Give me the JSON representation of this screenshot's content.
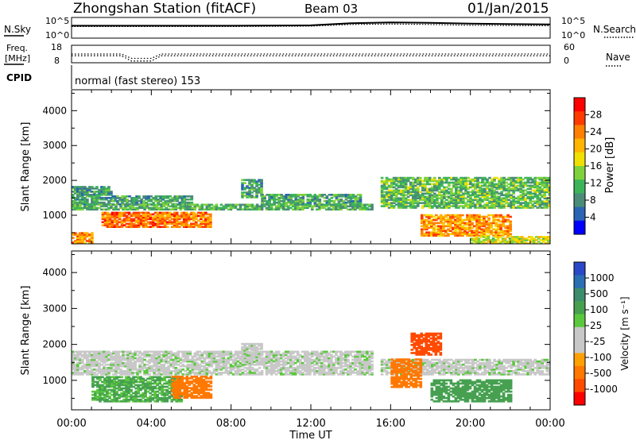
{
  "header": {
    "station": "Zhongshan Station (fitACF)",
    "beam": "Beam 03",
    "date": "01/Jan/2015"
  },
  "top_panels": {
    "nsky_label": "N.Sky",
    "nsearch_label": "N.Search",
    "noise_ticks": [
      "10^5",
      "10^0"
    ],
    "freq_label_1": "Freq.",
    "freq_label_2": "[MHz]",
    "freq_ticks": [
      "18",
      "8"
    ],
    "nave_label": "Nave",
    "nave_ticks": [
      "60",
      "0"
    ],
    "cpid_label": "CPID",
    "cpid_value": "normal (fast stereo) 153"
  },
  "x_axis": {
    "label": "Time UT",
    "ticks": [
      "00:00",
      "04:00",
      "08:00",
      "12:00",
      "16:00",
      "20:00",
      "00:00"
    ]
  },
  "y_axis": {
    "label": "Slant Range [km]",
    "ticks": [
      "4000",
      "3000",
      "2000",
      "1000"
    ]
  },
  "power_scale": {
    "label": "Power [dB]",
    "ticks": [
      "28",
      "24",
      "20",
      "16",
      "12",
      "8",
      "4"
    ],
    "colors": [
      "#ff0000",
      "#ff3a00",
      "#ff8000",
      "#ffb400",
      "#f0e000",
      "#7fd23c",
      "#3cb45a",
      "#4a8c78",
      "#2a64b4",
      "#0000ff"
    ]
  },
  "velocity_scale": {
    "label": "Velocity [m s⁻¹]",
    "ticks": [
      "1000",
      "500",
      "100",
      "25",
      "-25",
      "-100",
      "-500",
      "-1000"
    ],
    "colors": [
      "#2a48c8",
      "#2a6eb4",
      "#3c8c6e",
      "#46a050",
      "#5ac83c",
      "#c8c8c8",
      "#c8c8c8",
      "#ffa000",
      "#ff7800",
      "#ff4a00",
      "#ff0000"
    ]
  },
  "chart_data": [
    {
      "type": "heatmap",
      "title": "Zhongshan Station (fitACF)  Beam 03  01/Jan/2015",
      "quantity": "Power [dB]",
      "xlabel": "Time UT",
      "ylabel": "Slant Range [km]",
      "xlim": [
        "00:00",
        "24:00"
      ],
      "ylim": [
        180,
        4600
      ],
      "colorbar_range": [
        0,
        30
      ],
      "colorbar_ticks": [
        4,
        8,
        12,
        16,
        20,
        24,
        28
      ],
      "regions": [
        {
          "t": [
            0.0,
            2.0
          ],
          "r": [
            1300,
            1800
          ],
          "value": 8
        },
        {
          "t": [
            2.0,
            6.0
          ],
          "r": [
            1300,
            1550
          ],
          "value": 8
        },
        {
          "t": [
            8.5,
            9.5
          ],
          "r": [
            1500,
            2000
          ],
          "value": 9
        },
        {
          "t": [
            9.5,
            14.5
          ],
          "r": [
            1300,
            1600
          ],
          "value": 9
        },
        {
          "t": [
            0.0,
            15.0
          ],
          "r": [
            1150,
            1300
          ],
          "value": 10
        },
        {
          "t": [
            1.5,
            7.0
          ],
          "r": [
            650,
            1100
          ],
          "value": 24
        },
        {
          "t": [
            0.0,
            1.0
          ],
          "r": [
            200,
            500
          ],
          "value": 22
        },
        {
          "t": [
            15.5,
            24.0
          ],
          "r": [
            1200,
            2100
          ],
          "value": 11
        },
        {
          "t": [
            17.5,
            22.0
          ],
          "r": [
            400,
            1000
          ],
          "value": 22
        },
        {
          "t": [
            20.0,
            24.0
          ],
          "r": [
            180,
            400
          ],
          "value": 16
        }
      ]
    },
    {
      "type": "heatmap",
      "title": "Zhongshan Station (fitACF)  Beam 03  01/Jan/2015",
      "quantity": "Velocity [m s⁻¹]",
      "xlabel": "Time UT",
      "ylabel": "Slant Range [km]",
      "xlim": [
        "00:00",
        "24:00"
      ],
      "ylim": [
        180,
        4600
      ],
      "colorbar_range": [
        -1000,
        1000
      ],
      "colorbar_ticks": [
        1000,
        500,
        100,
        25,
        -25,
        -100,
        -500,
        -1000
      ],
      "regions": [
        {
          "t": [
            0.0,
            15.0
          ],
          "r": [
            1150,
            1800
          ],
          "value": 0
        },
        {
          "t": [
            8.5,
            9.5
          ],
          "r": [
            1500,
            2000
          ],
          "value": 0
        },
        {
          "t": [
            1.0,
            5.5
          ],
          "r": [
            400,
            1100
          ],
          "value": 80
        },
        {
          "t": [
            5.0,
            7.0
          ],
          "r": [
            500,
            1100
          ],
          "value": -300
        },
        {
          "t": [
            15.5,
            24.0
          ],
          "r": [
            1150,
            1600
          ],
          "value": 0
        },
        {
          "t": [
            16.0,
            17.5
          ],
          "r": [
            800,
            1600
          ],
          "value": -300
        },
        {
          "t": [
            17.0,
            18.5
          ],
          "r": [
            1700,
            2300
          ],
          "value": -500
        },
        {
          "t": [
            18.0,
            22.0
          ],
          "r": [
            400,
            1000
          ],
          "value": 120
        }
      ]
    },
    {
      "type": "line",
      "title": "N.Sky / N.Search",
      "x": [
        0,
        4,
        8,
        12,
        14,
        16,
        18,
        20,
        24
      ],
      "series": [
        {
          "name": "N.Sky",
          "values": [
            3.0,
            3.0,
            3.0,
            3.1,
            3.6,
            3.8,
            3.7,
            3.5,
            3.3
          ]
        },
        {
          "name": "N.Search",
          "values": [
            2.8,
            2.8,
            2.8,
            2.9,
            3.3,
            3.4,
            3.3,
            3.1,
            3.0
          ]
        }
      ],
      "ylim": [
        0,
        5
      ],
      "yscale": "log10"
    },
    {
      "type": "line",
      "title": "Freq. / Nave",
      "x": [
        0,
        2.5,
        3.0,
        4.0,
        4.5,
        24
      ],
      "series": [
        {
          "name": "Freq. [MHz]",
          "values": [
            12,
            12,
            9,
            9,
            12,
            12
          ]
        },
        {
          "name": "Nave",
          "values": [
            30,
            30,
            15,
            15,
            30,
            30
          ]
        }
      ]
    }
  ]
}
